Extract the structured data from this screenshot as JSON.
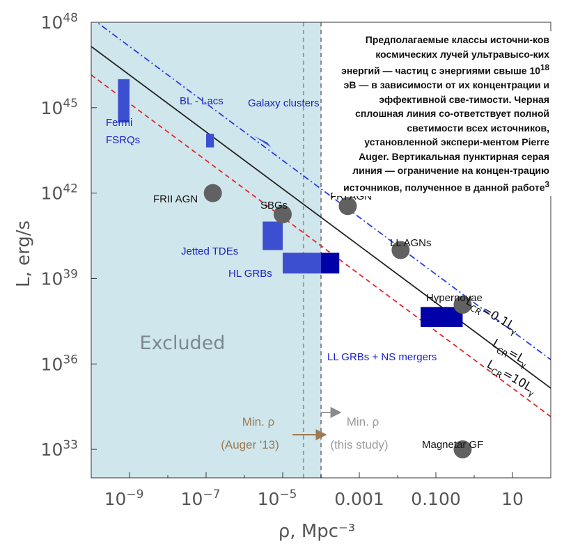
{
  "chart_data": {
    "type": "scatter",
    "xlabel": "ρ, Mpc⁻³",
    "ylabel": "L, erg/s",
    "x_scale": "log",
    "y_scale": "log",
    "xlim": [
      1e-10,
      100
    ],
    "ylim": [
      1e+32,
      1e+48
    ],
    "x_ticks": [
      {
        "value": 1e-09,
        "base": "10",
        "exp": "−9"
      },
      {
        "value": 1e-07,
        "base": "10",
        "exp": "−7"
      },
      {
        "value": 1e-05,
        "base": "10",
        "exp": "−5"
      },
      {
        "value": 0.001,
        "label": "0.001"
      },
      {
        "value": 0.1,
        "label": "0.100"
      },
      {
        "value": 10,
        "label": "10"
      }
    ],
    "y_ticks": [
      {
        "value": 1e+33,
        "base": "10",
        "exp": "33"
      },
      {
        "value": 1e+36,
        "base": "10",
        "exp": "36"
      },
      {
        "value": 1e+39,
        "base": "10",
        "exp": "39"
      },
      {
        "value": 1e+42,
        "base": "10",
        "exp": "42"
      },
      {
        "value": 1e+45,
        "base": "10",
        "exp": "45"
      },
      {
        "value": 1e+48,
        "base": "10",
        "exp": "48"
      }
    ],
    "excluded_region": {
      "label": "Excluded",
      "x_max": 0.0001,
      "color": "#cfe6ec"
    },
    "vlines": [
      {
        "x": 3.5e-05,
        "color": "#a09b8a",
        "style": "dashed"
      },
      {
        "x": 0.0001,
        "color": "#8c8c8c",
        "style": "dashed"
      }
    ],
    "annotations": [
      {
        "text": "Min. ρ",
        "text2": "(Auger '13)",
        "color": "#9c7a52",
        "arrow_to_x": 3.5e-05,
        "position": "left"
      },
      {
        "text": "Min. ρ",
        "text2": "(this study)",
        "color": "#9a9a9a",
        "arrow_to_x": 0.0001,
        "position": "right"
      }
    ],
    "lines": [
      {
        "x": [
          1e-10,
          100
        ],
        "y": [
          1.41e+46,
          1.41e+34
        ],
        "color": "#e8252a",
        "style": "dashed",
        "label": "L<sub>CR</sub>=10L<sub>γ</sub>"
      },
      {
        "x": [
          1e-10,
          100
        ],
        "y": [
          1.41e+47,
          1.41e+35
        ],
        "color": "#222222",
        "style": "solid",
        "label": "L<sub>CR</sub>=L<sub>γ</sub>"
      },
      {
        "x": [
          1e-10,
          100
        ],
        "y": [
          1.41e+48,
          1.41e+36
        ],
        "color": "#2a3ee8",
        "style": "dashdot",
        "label": "L<sub>CR</sub>=0.1L<sub>γ</sub>"
      }
    ],
    "boxes": [
      {
        "x": [
          5e-10,
          1e-09
        ],
        "y": [
          3e+44,
          1e+46
        ],
        "color": "#3c4fd0",
        "label": "Fermi\nFSRQs"
      },
      {
        "x": [
          1e-07,
          1.6e-07
        ],
        "y": [
          4e+43,
          1.2e+44
        ],
        "color": "#3c4fd0",
        "label": "BL - Lacs"
      },
      {
        "x": [
          3e-06,
          1e-05
        ],
        "y": [
          1e+40,
          1e+41
        ],
        "color": "#3c4fd0",
        "label": "Jetted TDEs"
      },
      {
        "x": [
          1e-05,
          0.0001
        ],
        "y": [
          1.5e+39,
          8e+39
        ],
        "color": "#3c4fd0",
        "label": "HL GRBs"
      },
      {
        "x": [
          0.0001,
          0.0003
        ],
        "y": [
          1.5e+39,
          8e+39
        ],
        "color": "#0000a8",
        "label": ""
      },
      {
        "x": [
          0.04,
          0.5
        ],
        "y": [
          2e+37,
          1e+38
        ],
        "color": "#0000a8",
        "label": "LL GRBs + NS mergers"
      }
    ],
    "polygons": [
      {
        "points": [
          [
            1.8e-06,
            1e+44
          ],
          [
            4e-06,
            6e+43
          ],
          [
            1.2e-05,
            8e+42
          ],
          [
            5e-06,
            4e+43
          ]
        ],
        "color": "#3c4fd0",
        "label": "Galaxy clusters"
      }
    ],
    "points": [
      {
        "x": 1.5e-07,
        "y": 1e+42,
        "label": "FRII AGN"
      },
      {
        "x": 1e-05,
        "y": 1.8e+41,
        "label": "SBGs"
      },
      {
        "x": 0.0005,
        "y": 3.5e+41,
        "label": "FRI AGN"
      },
      {
        "x": 0.012,
        "y": 1e+40,
        "label": "LL AGNs"
      },
      {
        "x": 0.5,
        "y": 1.2e+38,
        "label": "Hypernovae"
      },
      {
        "x": 0.5,
        "y": 1e+33,
        "label": "Magnetar GF"
      }
    ],
    "point_color": "#616161",
    "caption": {
      "text": "Предполагаемые классы источни-ков космических лучей ультравысо-ких энергий — частиц с энергиями свыше 10",
      "sup": "18",
      "text2": " эВ — в зависимости от их концентрации и эффективной све-тимости. Черная сплошная линия со-ответствует полной светимости всех источников, установленной экспери-ментом Pierre Auger. Вертикальная пунктирная серая линия — ограничение на концен-трацию источников, полученное в данной работе",
      "sup2": "3"
    }
  }
}
